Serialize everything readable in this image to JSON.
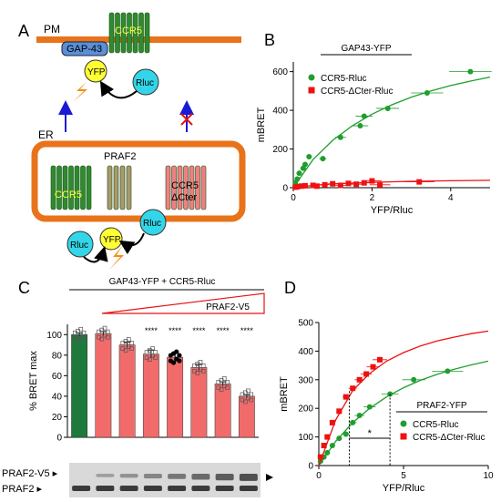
{
  "panel_letters": [
    "A",
    "B",
    "C",
    "D"
  ],
  "colors": {
    "membrane": "#e8731a",
    "ccr5": "#2e8b2e",
    "ccr5_dcter": "#f08080",
    "praf2": "#a89a6a",
    "gap43": "#5b8fd6",
    "yfp": "#ffff33",
    "rluc": "#33d6e8",
    "green_series": "#1f9e2f",
    "red_series": "#ee1111",
    "bar_red": "#f26b6b",
    "bar_green": "#1e7a3c"
  },
  "panel_a": {
    "pm_label": "PM",
    "er_label": "ER",
    "gap43_label": "GAP-43",
    "ccr5_label": "CCR5",
    "yfp_label": "YFP",
    "rluc_label": "Rluc",
    "praf2_label": "PRAF2",
    "dcter_label_1": "CCR5",
    "dcter_label_2": "ΔCter"
  },
  "chart_data": [
    {
      "panel": "B",
      "type": "scatter",
      "title": "GAP43-YFP",
      "xlabel": "YFP/Rluc",
      "ylabel": "mBRET",
      "xlim": [
        0,
        5
      ],
      "ylim": [
        0,
        650
      ],
      "xticks": [
        0,
        2,
        4
      ],
      "yticks": [
        0,
        200,
        400,
        600
      ],
      "legend_position": "top-right",
      "series": [
        {
          "name": "CCR5-Rluc",
          "color": "#1f9e2f",
          "marker": "circle",
          "x": [
            0.05,
            0.1,
            0.15,
            0.25,
            0.3,
            0.4,
            0.75,
            1.2,
            1.7,
            1.8,
            2.4,
            3.4,
            4.5
          ],
          "y": [
            25,
            45,
            75,
            100,
            120,
            160,
            150,
            260,
            320,
            370,
            410,
            490,
            600
          ],
          "fit": [
            [
              0,
              0
            ],
            [
              0.5,
              145
            ],
            [
              1,
              245
            ],
            [
              1.5,
              320
            ],
            [
              2,
              380
            ],
            [
              2.5,
              428
            ],
            [
              3,
              468
            ],
            [
              3.5,
              500
            ],
            [
              4,
              528
            ],
            [
              4.5,
              551
            ],
            [
              5,
              572
            ]
          ]
        },
        {
          "name": "CCR5-ΔCter-Rluc",
          "color": "#ee1111",
          "marker": "square",
          "x": [
            0.05,
            0.1,
            0.2,
            0.3,
            0.5,
            0.6,
            0.8,
            1.0,
            1.2,
            1.4,
            1.6,
            1.8,
            2.0,
            2.2,
            3.2
          ],
          "y": [
            3,
            5,
            8,
            10,
            12,
            8,
            15,
            20,
            12,
            22,
            18,
            25,
            35,
            15,
            30
          ],
          "fit": [
            [
              0,
              0
            ],
            [
              0.5,
              12
            ],
            [
              1,
              20
            ],
            [
              2,
              28
            ],
            [
              3,
              33
            ],
            [
              4,
              36
            ],
            [
              5,
              38
            ]
          ]
        }
      ]
    },
    {
      "panel": "C",
      "type": "bar",
      "title": "GAP43-YFP + CCR5-Rluc",
      "ramp_label": "PRAF2-V5",
      "ylabel": "% BRET max",
      "ylim": [
        0,
        110
      ],
      "yticks": [
        0,
        20,
        40,
        60,
        80,
        100
      ],
      "values": [
        100,
        101,
        90,
        81,
        78,
        68,
        52,
        40
      ],
      "errors": [
        1.5,
        2.0,
        2.5,
        4.0,
        4.5,
        3.0,
        2.0,
        1.5
      ],
      "significance": [
        "",
        "",
        "",
        "****",
        "****",
        "****",
        "****",
        "****"
      ],
      "blot_labels": [
        "PRAF2-V5",
        "PRAF2"
      ]
    },
    {
      "panel": "D",
      "type": "scatter",
      "title": "PRAF2-YFP",
      "xlabel": "YFP/Rluc",
      "ylabel": "mBRET",
      "xlim": [
        0,
        10
      ],
      "ylim": [
        0,
        500
      ],
      "xticks": [
        0,
        5,
        10
      ],
      "yticks": [
        0,
        100,
        200,
        300,
        400,
        500
      ],
      "legend_position": "bottom-right",
      "significance_label": "*",
      "series": [
        {
          "name": "CCR5-Rluc",
          "color": "#1f9e2f",
          "marker": "circle",
          "x": [
            0.1,
            0.3,
            0.5,
            0.8,
            1.2,
            1.6,
            2.0,
            2.4,
            3.0,
            4.2,
            5.6,
            7.6
          ],
          "y": [
            15,
            30,
            45,
            70,
            95,
            110,
            150,
            175,
            205,
            250,
            300,
            330
          ],
          "fit": [
            [
              0,
              0
            ],
            [
              1,
              85
            ],
            [
              2,
              150
            ],
            [
              3,
              200
            ],
            [
              4,
              240
            ],
            [
              5,
              272
            ],
            [
              6,
              298
            ],
            [
              7,
              319
            ],
            [
              8,
              337
            ],
            [
              9,
              352
            ],
            [
              10,
              365
            ]
          ]
        },
        {
          "name": "CCR5-ΔCter-Rluc",
          "color": "#ee1111",
          "marker": "square",
          "x": [
            0.1,
            0.3,
            0.5,
            0.8,
            1.2,
            1.6,
            2.0,
            2.4,
            2.8,
            3.2,
            3.6
          ],
          "y": [
            30,
            70,
            100,
            150,
            190,
            240,
            270,
            300,
            320,
            345,
            370
          ],
          "fit": [
            [
              0,
              0
            ],
            [
              1,
              160
            ],
            [
              2,
              262
            ],
            [
              3,
              322
            ],
            [
              4,
              365
            ],
            [
              5,
              395
            ],
            [
              6,
              418
            ],
            [
              7,
              436
            ],
            [
              8,
              449
            ],
            [
              9,
              461
            ],
            [
              10,
              470
            ]
          ]
        }
      ]
    }
  ]
}
